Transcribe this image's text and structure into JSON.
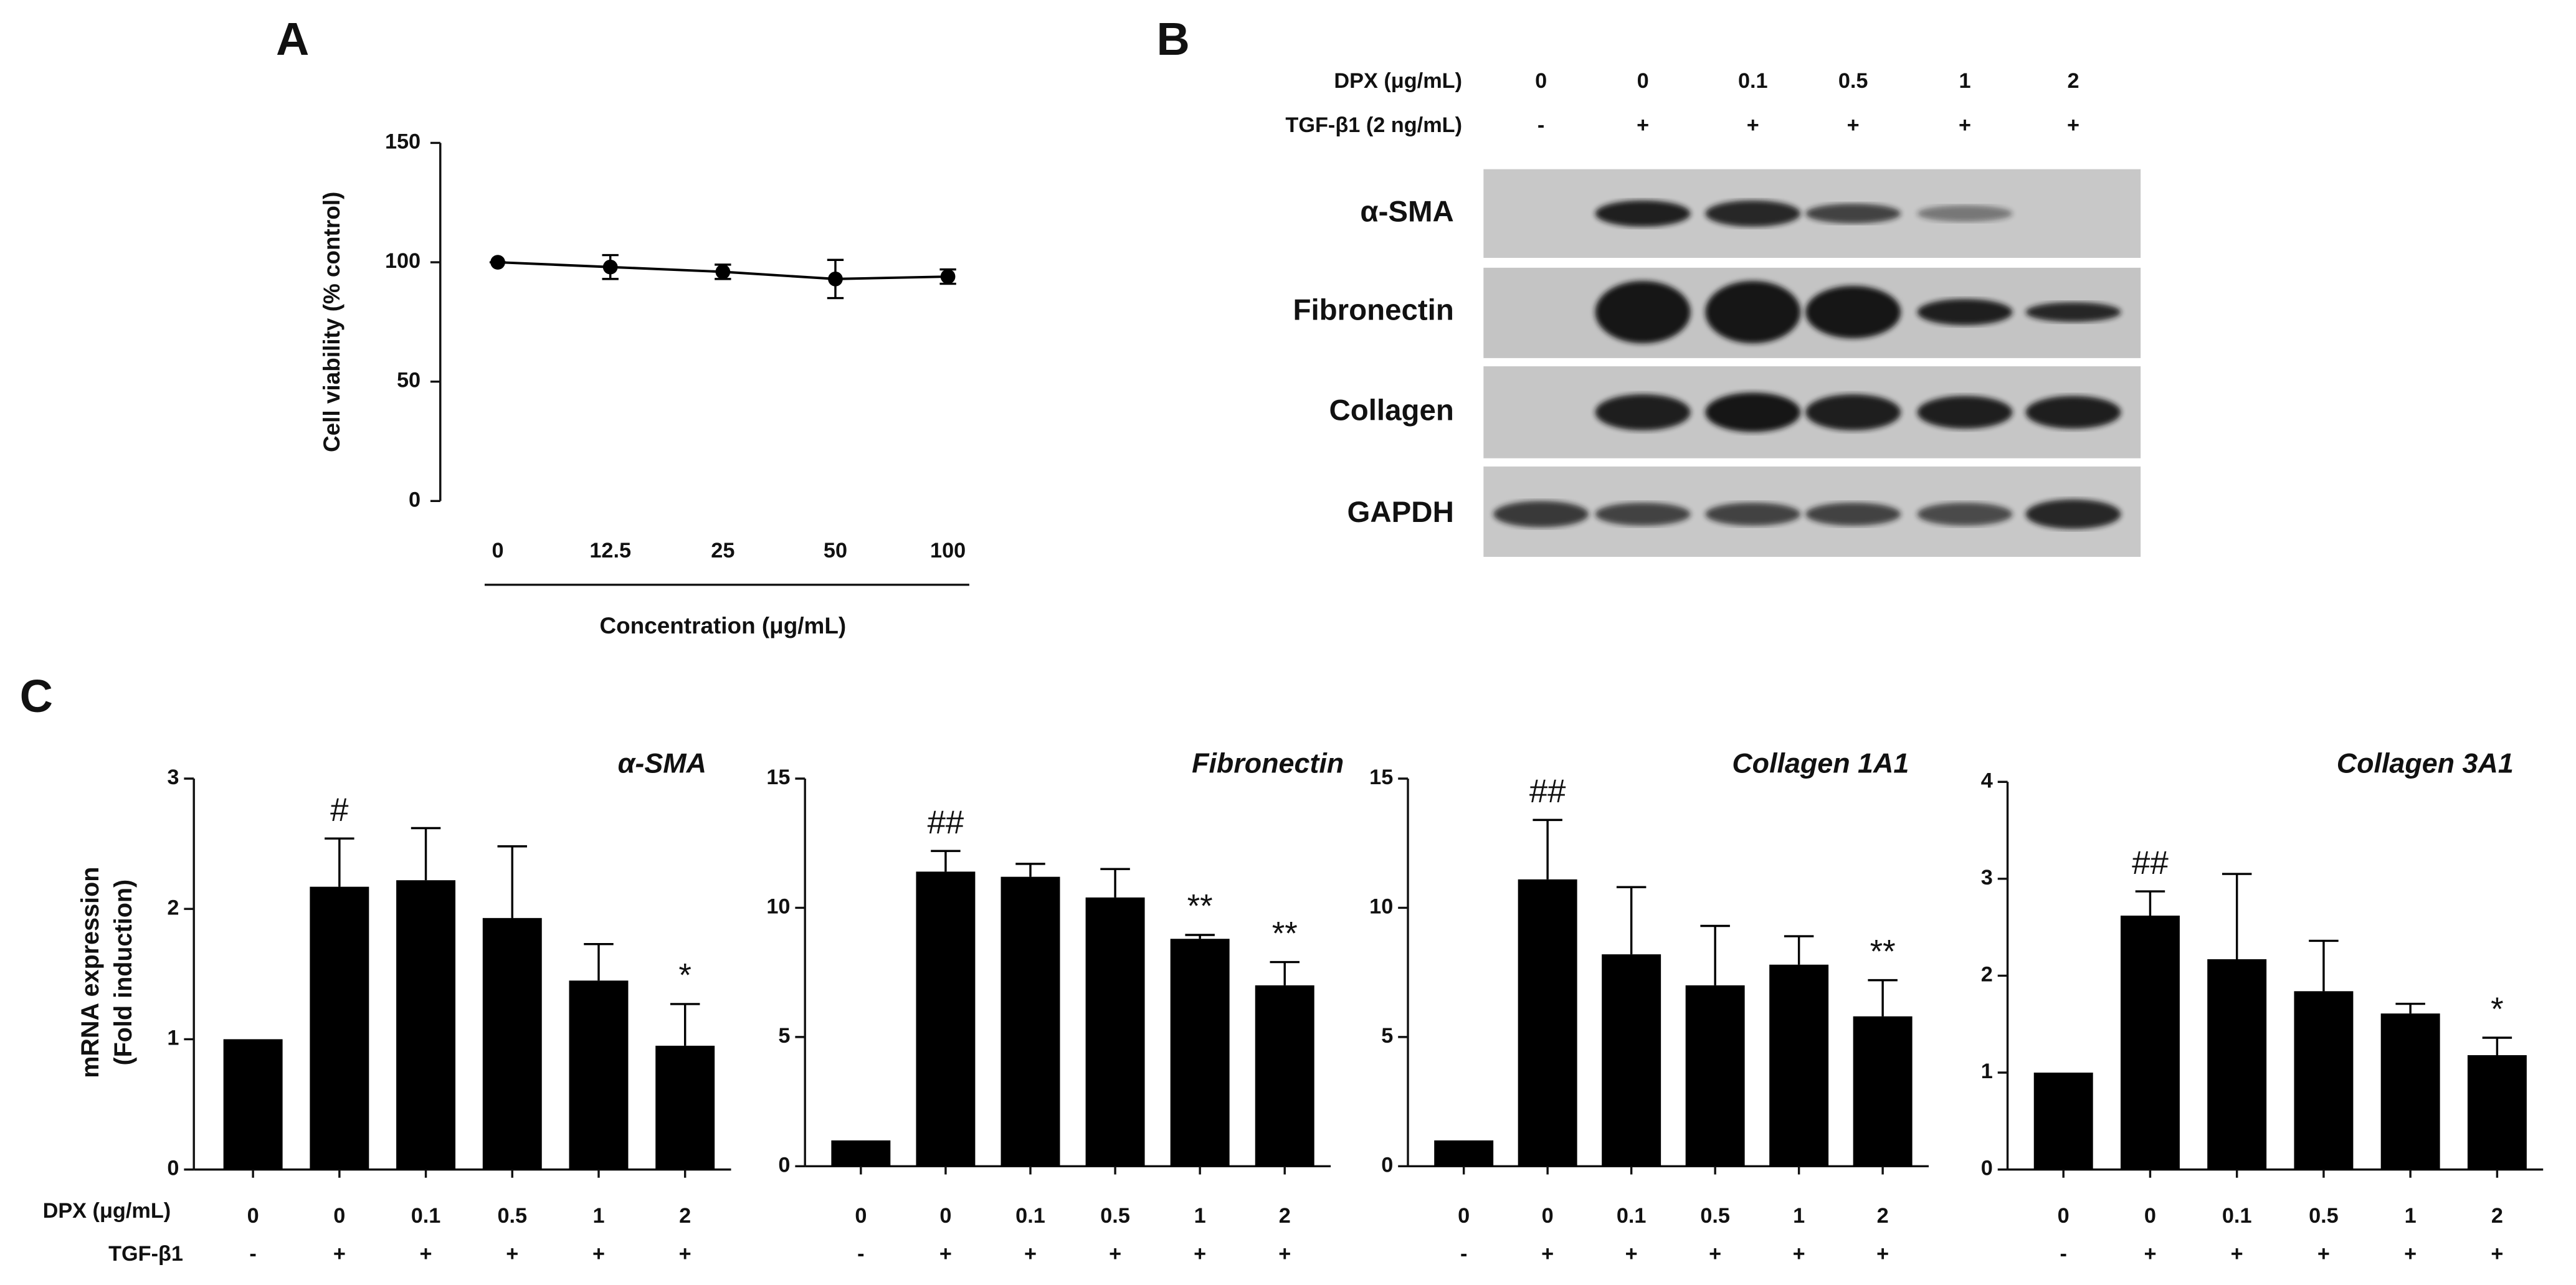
{
  "panel_labels": [
    "A",
    "B",
    "C"
  ],
  "chart_data": [
    {
      "type": "line",
      "categories": [
        "0",
        "12.5",
        "25",
        "50",
        "100"
      ],
      "values": [
        100,
        98,
        96,
        93,
        94
      ],
      "errors": [
        0,
        5,
        3,
        8,
        3
      ],
      "ylim": [
        0,
        150
      ],
      "yticks": [
        0,
        50,
        100,
        150
      ],
      "ylabel": "Cell viability (% control)",
      "xlabel": "Concentration (μg/mL)",
      "color": "#000000"
    },
    {
      "type": "bar",
      "title": "α-SMA",
      "categories": [
        "0",
        "0",
        "0.1",
        "0.5",
        "1",
        "2"
      ],
      "signs": [
        "-",
        "+",
        "+",
        "+",
        "+",
        "+"
      ],
      "values": [
        1,
        2.17,
        2.22,
        1.93,
        1.45,
        0.95
      ],
      "errors": [
        0,
        0.37,
        0.4,
        0.55,
        0.28,
        0.32
      ],
      "annotations": [
        null,
        "#",
        null,
        null,
        null,
        "*"
      ],
      "ylim": [
        0,
        3
      ],
      "yticks": [
        0,
        1,
        2,
        3
      ],
      "color": "#000000"
    },
    {
      "type": "bar",
      "title": "Fibronectin",
      "categories": [
        "0",
        "0",
        "0.1",
        "0.5",
        "1",
        "2"
      ],
      "signs": [
        "-",
        "+",
        "+",
        "+",
        "+",
        "+"
      ],
      "values": [
        1,
        11.4,
        11.2,
        10.4,
        8.8,
        7.0
      ],
      "errors": [
        0,
        0.8,
        0.5,
        1.1,
        0.15,
        0.9
      ],
      "annotations": [
        null,
        "##",
        null,
        null,
        "**",
        "**"
      ],
      "ylim": [
        0,
        15
      ],
      "yticks": [
        0,
        5,
        10,
        15
      ],
      "color": "#000000"
    },
    {
      "type": "bar",
      "title": "Collagen 1A1",
      "categories": [
        "0",
        "0",
        "0.1",
        "0.5",
        "1",
        "2"
      ],
      "signs": [
        "-",
        "+",
        "+",
        "+",
        "+",
        "+"
      ],
      "values": [
        1,
        11.1,
        8.2,
        7.0,
        7.8,
        5.8
      ],
      "errors": [
        0,
        2.3,
        2.6,
        2.3,
        1.1,
        1.4
      ],
      "annotations": [
        null,
        "##",
        null,
        null,
        null,
        "**"
      ],
      "ylim": [
        0,
        15
      ],
      "yticks": [
        0,
        5,
        10,
        15
      ],
      "color": "#000000"
    },
    {
      "type": "bar",
      "title": "Collagen 3A1",
      "categories": [
        "0",
        "0",
        "0.1",
        "0.5",
        "1",
        "2"
      ],
      "signs": [
        "-",
        "+",
        "+",
        "+",
        "+",
        "+"
      ],
      "values": [
        1,
        2.62,
        2.17,
        1.84,
        1.61,
        1.18
      ],
      "errors": [
        0,
        0.25,
        0.88,
        0.52,
        0.1,
        0.18
      ],
      "annotations": [
        null,
        "##",
        null,
        null,
        null,
        "*"
      ],
      "ylim": [
        0,
        4
      ],
      "yticks": [
        0,
        1,
        2,
        3,
        4
      ],
      "color": "#000000"
    }
  ],
  "panel_c": {
    "row_labels": [
      "DPX (μg/mL)",
      "TGF-β1"
    ],
    "ylabel": [
      "mRNA expression",
      "(Fold induction)"
    ]
  },
  "blot": {
    "row_labels": [
      "DPX (μg/mL)",
      "TGF-β1 (2 ng/mL)"
    ],
    "dpx": [
      "0",
      "0",
      "0.1",
      "0.5",
      "1",
      "2"
    ],
    "tgf": [
      "-",
      "+",
      "+",
      "+",
      "+",
      "+"
    ],
    "bands": [
      "α-SMA",
      "Fibronectin",
      "Collagen",
      "GAPDH"
    ]
  }
}
